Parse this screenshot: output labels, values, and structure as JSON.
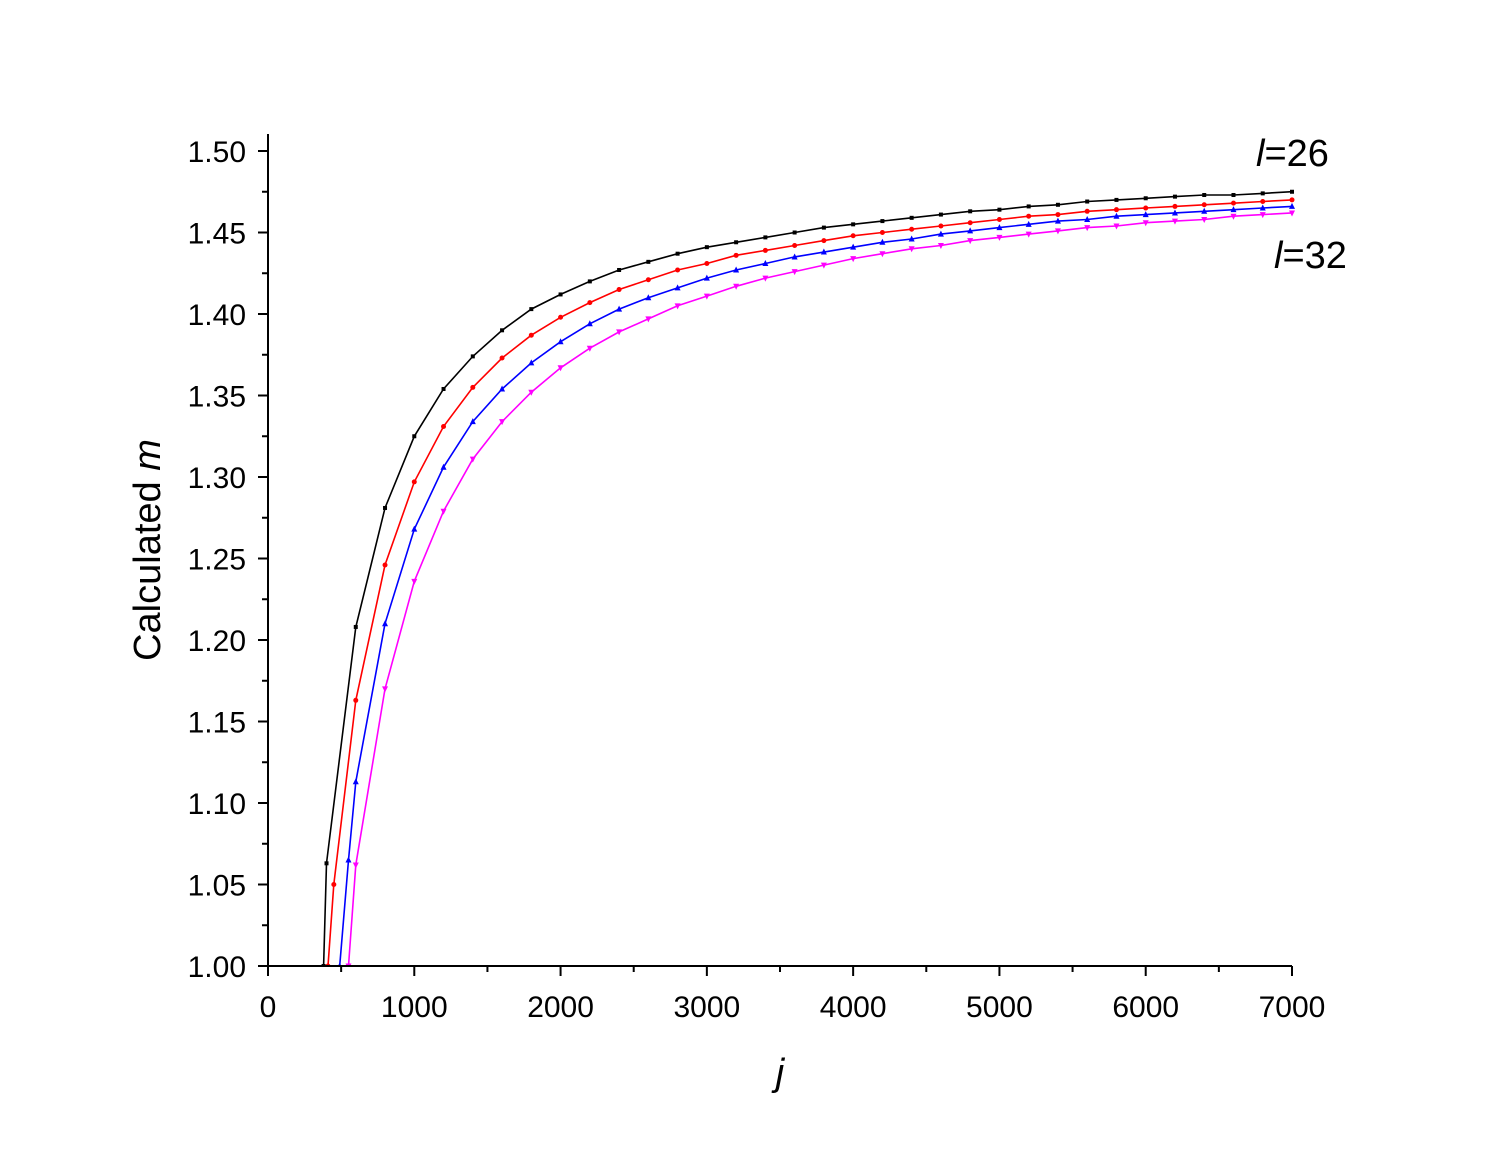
{
  "chart_data": {
    "type": "line",
    "title": "",
    "xlabel": "j",
    "ylabel": "Calculated m",
    "xlim": [
      0,
      7000
    ],
    "ylim": [
      1.0,
      1.5
    ],
    "x_ticks": [
      "0",
      "1000",
      "2000",
      "3000",
      "4000",
      "5000",
      "6000",
      "7000"
    ],
    "y_ticks": [
      "1.00",
      "1.05",
      "1.10",
      "1.15",
      "1.20",
      "1.25",
      "1.30",
      "1.35",
      "1.40",
      "1.45",
      "1.50"
    ],
    "grid": false,
    "annotations": [
      {
        "prefix": "l",
        "suffix": "=26"
      },
      {
        "prefix": "l",
        "suffix": "=32"
      }
    ],
    "series": [
      {
        "color": "#000000",
        "marker": "square",
        "x": [
          380,
          400,
          600,
          800,
          1000,
          1200,
          1400,
          1600,
          1800,
          2000,
          2200,
          2400,
          2600,
          2800,
          3000,
          3200,
          3400,
          3600,
          3800,
          4000,
          4200,
          4400,
          4600,
          4800,
          5000,
          5200,
          5400,
          5600,
          5800,
          6000,
          6200,
          6400,
          6600,
          6800,
          7000
        ],
        "y": [
          1.0,
          1.063,
          1.208,
          1.281,
          1.325,
          1.354,
          1.374,
          1.39,
          1.403,
          1.412,
          1.42,
          1.427,
          1.432,
          1.437,
          1.441,
          1.444,
          1.447,
          1.45,
          1.453,
          1.455,
          1.457,
          1.459,
          1.461,
          1.463,
          1.464,
          1.466,
          1.467,
          1.469,
          1.47,
          1.471,
          1.472,
          1.473,
          1.473,
          1.474,
          1.475
        ]
      },
      {
        "color": "#ff0000",
        "marker": "circle",
        "x": [
          410,
          450,
          600,
          800,
          1000,
          1200,
          1400,
          1600,
          1800,
          2000,
          2200,
          2400,
          2600,
          2800,
          3000,
          3200,
          3400,
          3600,
          3800,
          4000,
          4200,
          4400,
          4600,
          4800,
          5000,
          5200,
          5400,
          5600,
          5800,
          6000,
          6200,
          6400,
          6600,
          6800,
          7000
        ],
        "y": [
          1.0,
          1.05,
          1.163,
          1.246,
          1.297,
          1.331,
          1.355,
          1.373,
          1.387,
          1.398,
          1.407,
          1.415,
          1.421,
          1.427,
          1.431,
          1.436,
          1.439,
          1.442,
          1.445,
          1.448,
          1.45,
          1.452,
          1.454,
          1.456,
          1.458,
          1.46,
          1.461,
          1.463,
          1.464,
          1.465,
          1.466,
          1.467,
          1.468,
          1.469,
          1.47
        ]
      },
      {
        "color": "#0000ff",
        "marker": "triangle-up",
        "x": [
          490,
          550,
          600,
          800,
          1000,
          1200,
          1400,
          1600,
          1800,
          2000,
          2200,
          2400,
          2600,
          2800,
          3000,
          3200,
          3400,
          3600,
          3800,
          4000,
          4200,
          4400,
          4600,
          4800,
          5000,
          5200,
          5400,
          5600,
          5800,
          6000,
          6200,
          6400,
          6600,
          6800,
          7000
        ],
        "y": [
          1.0,
          1.065,
          1.113,
          1.21,
          1.268,
          1.306,
          1.334,
          1.354,
          1.37,
          1.383,
          1.394,
          1.403,
          1.41,
          1.416,
          1.422,
          1.427,
          1.431,
          1.435,
          1.438,
          1.441,
          1.444,
          1.446,
          1.449,
          1.451,
          1.453,
          1.455,
          1.457,
          1.458,
          1.46,
          1.461,
          1.462,
          1.463,
          1.464,
          1.465,
          1.466
        ]
      },
      {
        "color": "#ff00ff",
        "marker": "triangle-down",
        "x": [
          550,
          600,
          800,
          1000,
          1200,
          1400,
          1600,
          1800,
          2000,
          2200,
          2400,
          2600,
          2800,
          3000,
          3200,
          3400,
          3600,
          3800,
          4000,
          4200,
          4400,
          4600,
          4800,
          5000,
          5200,
          5400,
          5600,
          5800,
          6000,
          6200,
          6400,
          6600,
          6800,
          7000
        ],
        "y": [
          1.0,
          1.062,
          1.17,
          1.236,
          1.279,
          1.311,
          1.334,
          1.352,
          1.367,
          1.379,
          1.389,
          1.397,
          1.405,
          1.411,
          1.417,
          1.422,
          1.426,
          1.43,
          1.434,
          1.437,
          1.44,
          1.442,
          1.445,
          1.447,
          1.449,
          1.451,
          1.453,
          1.454,
          1.456,
          1.457,
          1.458,
          1.46,
          1.461,
          1.462
        ]
      }
    ]
  }
}
